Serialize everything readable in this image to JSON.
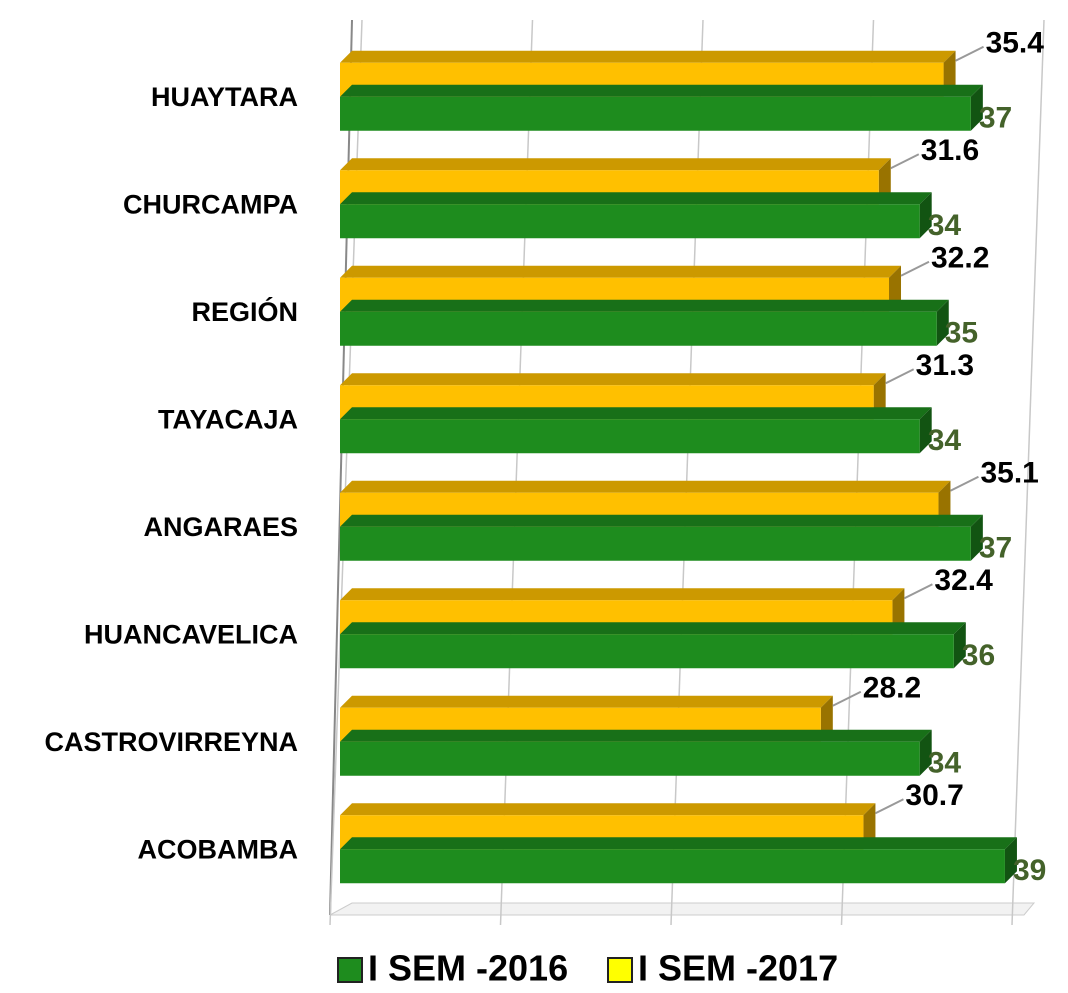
{
  "chart_data": {
    "type": "bar",
    "orientation": "horizontal",
    "three_d": true,
    "categories": [
      "HUAYTARA",
      "CHURCAMPA",
      "REGIÓN",
      "TAYACAJA",
      "ANGARAES",
      "HUANCAVELICA",
      "CASTROVIRREYNA",
      "ACOBAMBA"
    ],
    "series": [
      {
        "name": "I SEM -2016",
        "color": "#1e8c1e",
        "label_color": "#44622a",
        "values": [
          37,
          34,
          35,
          34,
          37,
          36,
          34,
          39
        ]
      },
      {
        "name": "I SEM -2017",
        "color": "#ffc000",
        "label_color": "#000000",
        "values": [
          35.4,
          31.6,
          32.2,
          31.3,
          35.1,
          32.4,
          28.2,
          30.7
        ]
      }
    ],
    "xlim": [
      0,
      40
    ],
    "xticks": [
      0,
      10,
      20,
      30,
      40
    ],
    "grid": true,
    "legend": "bottom"
  }
}
